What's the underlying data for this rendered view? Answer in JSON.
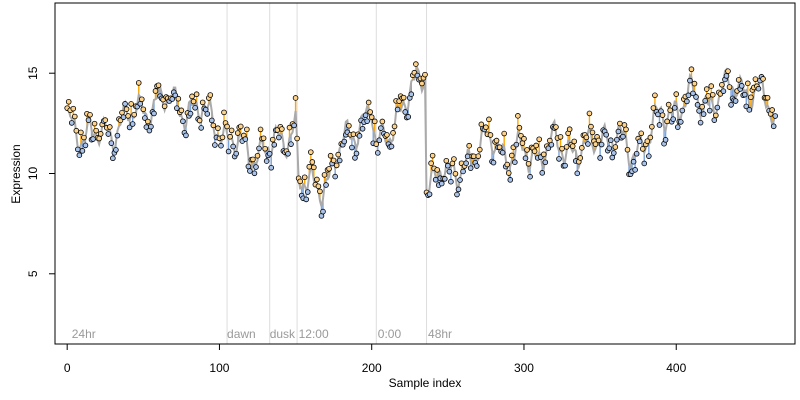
{
  "chart_data": {
    "type": "scatter",
    "xlabel": "Sample index",
    "ylabel": "Expression",
    "xlim": [
      -8,
      478
    ],
    "ylim": [
      1.5,
      18.5
    ],
    "xticks": [
      0,
      100,
      200,
      300,
      400
    ],
    "yticks": [
      5,
      10,
      15
    ],
    "grid": false,
    "colors": {
      "fitted_line": "#aaaaaa",
      "residual_up": "#ffa500",
      "residual_down": "#7ba3de",
      "point_fill": "#a9c3ea",
      "point_stroke": "#000000",
      "vline": "#dddddd",
      "annotation": "#9a9a9a"
    },
    "annotations": [
      {
        "x": 3,
        "label": "24hr"
      },
      {
        "x": 105,
        "label": "dawn"
      },
      {
        "x": 133,
        "label": "dusk"
      },
      {
        "x": 152,
        "label": "12:00"
      },
      {
        "x": 204,
        "label": "0:00"
      },
      {
        "x": 237,
        "label": "48hr"
      }
    ],
    "vlines": [
      105,
      133,
      151,
      203,
      236
    ],
    "knots": [
      [
        0,
        12.7
      ],
      [
        5,
        12.4
      ],
      [
        10,
        12.0
      ],
      [
        20,
        11.8
      ],
      [
        30,
        12.2
      ],
      [
        40,
        12.8
      ],
      [
        50,
        13.2
      ],
      [
        60,
        13.6
      ],
      [
        70,
        13.5
      ],
      [
        80,
        13.2
      ],
      [
        90,
        13.0
      ],
      [
        100,
        12.5
      ],
      [
        105,
        11.6
      ],
      [
        115,
        11.3
      ],
      [
        125,
        11.0
      ],
      [
        135,
        11.3
      ],
      [
        145,
        12.0
      ],
      [
        150,
        12.5
      ],
      [
        152,
        9.6
      ],
      [
        158,
        9.3
      ],
      [
        165,
        9.4
      ],
      [
        172,
        9.8
      ],
      [
        178,
        11.0
      ],
      [
        185,
        11.8
      ],
      [
        195,
        12.8
      ],
      [
        200,
        13.2
      ],
      [
        203,
        11.0
      ],
      [
        210,
        12.0
      ],
      [
        220,
        13.3
      ],
      [
        230,
        14.4
      ],
      [
        235,
        15.2
      ],
      [
        236,
        9.5
      ],
      [
        245,
        10.2
      ],
      [
        250,
        9.6
      ],
      [
        260,
        10.5
      ],
      [
        270,
        11.0
      ],
      [
        280,
        12.0
      ],
      [
        290,
        10.5
      ],
      [
        300,
        11.2
      ],
      [
        310,
        10.8
      ],
      [
        320,
        11.5
      ],
      [
        330,
        11.3
      ],
      [
        340,
        11.0
      ],
      [
        350,
        12.0
      ],
      [
        360,
        11.8
      ],
      [
        370,
        11.0
      ],
      [
        380,
        11.7
      ],
      [
        390,
        12.8
      ],
      [
        400,
        13.3
      ],
      [
        410,
        13.8
      ],
      [
        420,
        13.5
      ],
      [
        430,
        13.9
      ],
      [
        440,
        14.5
      ],
      [
        450,
        14.0
      ],
      [
        460,
        13.6
      ],
      [
        465,
        12.5
      ]
    ],
    "waves": [
      {
        "amplitude": 0.55,
        "period": 11.3
      },
      {
        "amplitude": 0.3,
        "period": 4.7
      },
      {
        "amplitude": 0.35,
        "period": 23.0
      }
    ],
    "noise_amplitude": 0.6,
    "n_points": 466
  }
}
